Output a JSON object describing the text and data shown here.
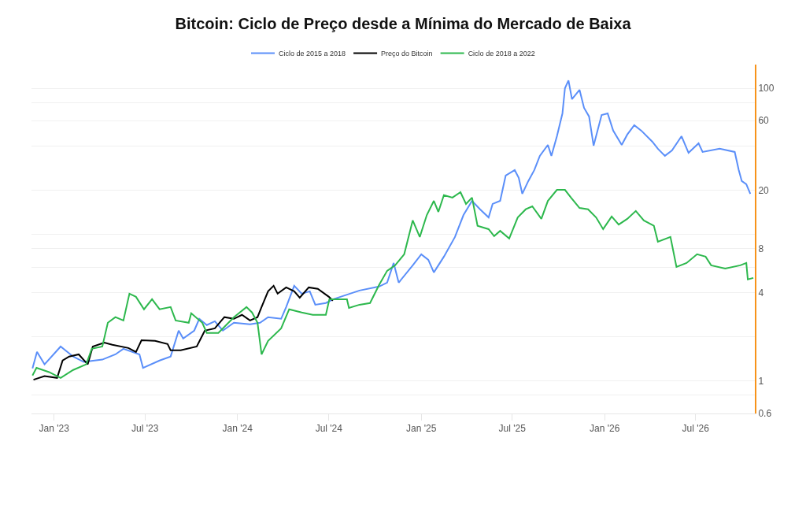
{
  "chart_data": {
    "type": "line",
    "title": "Bitcoin: Ciclo de Preço desde a Mínima do Mercado de Baixa",
    "log": true,
    "grid": "y",
    "legend": "top",
    "line_style": "solid",
    "xlim": [
      "2022-11-17",
      "2026-10-27"
    ],
    "xticks": [
      {
        "value": "2023-01-01",
        "label": "Jan '23"
      },
      {
        "value": "2023-07-01",
        "label": "Jul '23"
      },
      {
        "value": "2024-01-01",
        "label": "Jan '24"
      },
      {
        "value": "2024-07-01",
        "label": "Jul '24"
      },
      {
        "value": "2025-01-01",
        "label": "Jan '25"
      },
      {
        "value": "2025-07-01",
        "label": "Jul '25"
      },
      {
        "value": "2026-01-01",
        "label": "Jan '26"
      },
      {
        "value": "2026-07-01",
        "label": "Jul '26"
      }
    ],
    "ylim": [
      0.6,
      145
    ],
    "yticks": [
      0.6,
      {
        "value": 0.8,
        "label": null
      },
      1,
      {
        "value": 2,
        "label": null
      },
      4,
      {
        "value": 6,
        "label": null
      },
      8,
      {
        "value": 10,
        "label": null
      },
      20,
      {
        "value": 40,
        "label": null
      },
      60,
      {
        "value": 80,
        "label": null
      },
      100
    ],
    "series": [
      {
        "name": "Ciclo de 2015 a 2018",
        "color": "#5b8ff9",
        "x": [
          "2022-11-19",
          "2022-11-28",
          "2022-12-13",
          "2023-01-14",
          "2023-02-08",
          "2023-03-01",
          "2023-04-07",
          "2023-05-03",
          "2023-05-19",
          "2023-06-20",
          "2023-06-27",
          "2023-07-30",
          "2023-08-21",
          "2023-09-06",
          "2023-09-15",
          "2023-10-07",
          "2023-10-17",
          "2023-11-01",
          "2023-11-17",
          "2023-12-03",
          "2023-12-25",
          "2024-01-26",
          "2024-02-15",
          "2024-03-02",
          "2024-03-28",
          "2024-04-07",
          "2024-04-23",
          "2024-05-08",
          "2024-05-24",
          "2024-06-04",
          "2024-06-25",
          "2024-07-10",
          "2024-08-31",
          "2024-10-09",
          "2024-10-25",
          "2024-11-07",
          "2024-11-17",
          "2024-12-15",
          "2025-01-01",
          "2025-01-15",
          "2025-01-26",
          "2025-02-15",
          "2025-03-09",
          "2025-03-26",
          "2025-04-12",
          "2025-04-28",
          "2025-05-15",
          "2025-05-23",
          "2025-06-07",
          "2025-06-18",
          "2025-07-06",
          "2025-07-14",
          "2025-07-21",
          "2025-08-02",
          "2025-08-14",
          "2025-08-25",
          "2025-09-10",
          "2025-09-17",
          "2025-09-28",
          "2025-10-09",
          "2025-10-14",
          "2025-10-21",
          "2025-10-28",
          "2025-11-12",
          "2025-11-21",
          "2025-12-01",
          "2025-12-10",
          "2025-12-26",
          "2026-01-07",
          "2026-01-18",
          "2026-02-04",
          "2026-02-15",
          "2026-03-01",
          "2026-03-15",
          "2026-04-06",
          "2026-04-17",
          "2026-05-01",
          "2026-05-15",
          "2026-06-03",
          "2026-06-17",
          "2026-07-07",
          "2026-07-15",
          "2026-08-18",
          "2026-09-17",
          "2026-09-25",
          "2026-10-01",
          "2026-10-10",
          "2026-10-18"
        ],
        "values": [
          1.22,
          1.58,
          1.3,
          1.72,
          1.47,
          1.35,
          1.4,
          1.52,
          1.66,
          1.52,
          1.23,
          1.38,
          1.47,
          2.21,
          1.95,
          2.21,
          2.66,
          2.41,
          2.56,
          2.21,
          2.5,
          2.44,
          2.5,
          2.73,
          2.66,
          3.2,
          4.47,
          3.95,
          4.1,
          3.32,
          3.41,
          3.62,
          4.15,
          4.42,
          4.7,
          6.4,
          4.7,
          6.17,
          7.34,
          6.73,
          5.52,
          7.07,
          9.63,
          13.6,
          17.0,
          14.9,
          13.1,
          16.2,
          17.0,
          25.3,
          27.6,
          24.4,
          19.0,
          23.2,
          27.6,
          34.5,
          41.0,
          34.5,
          47.0,
          67.3,
          100,
          113,
          84.1,
          97.5,
          73.4,
          64.1,
          40.5,
          65.6,
          67.3,
          51.3,
          41.0,
          48.2,
          55.9,
          51.3,
          43.1,
          38.6,
          34.5,
          37.6,
          47.0,
          36.2,
          42.0,
          36.7,
          38.6,
          36.7,
          27.6,
          23.2,
          22.1,
          19.0
        ]
      },
      {
        "name": "Preço do Bitcoin",
        "color": "#000000",
        "x": [
          "2022-11-21",
          "2022-12-13",
          "2023-01-07",
          "2023-01-18",
          "2023-01-31",
          "2023-02-19",
          "2023-03-09",
          "2023-03-19",
          "2023-04-11",
          "2023-04-27",
          "2023-05-29",
          "2023-06-13",
          "2023-06-24",
          "2023-07-21",
          "2023-08-15",
          "2023-08-21",
          "2023-09-10",
          "2023-10-12",
          "2023-10-28",
          "2023-11-17",
          "2023-12-06",
          "2023-12-25",
          "2024-01-10",
          "2024-01-26",
          "2024-02-10",
          "2024-02-18",
          "2024-03-02",
          "2024-03-13",
          "2024-03-21",
          "2024-04-07",
          "2024-04-23",
          "2024-05-04",
          "2024-05-22",
          "2024-06-09",
          "2024-07-01",
          "2024-07-09"
        ],
        "values": [
          1.02,
          1.08,
          1.05,
          1.38,
          1.47,
          1.52,
          1.3,
          1.72,
          1.83,
          1.77,
          1.68,
          1.58,
          1.9,
          1.88,
          1.79,
          1.62,
          1.62,
          1.72,
          2.21,
          2.29,
          2.73,
          2.66,
          2.83,
          2.59,
          2.73,
          3.2,
          4.1,
          4.47,
          3.95,
          4.36,
          4.1,
          3.71,
          4.36,
          4.26,
          3.76,
          3.54
        ]
      },
      {
        "name": "Ciclo de 2018 a 2022",
        "color": "#2db84d",
        "x": [
          "2022-11-19",
          "2022-11-27",
          "2022-12-22",
          "2023-01-14",
          "2023-02-08",
          "2023-03-06",
          "2023-03-17",
          "2023-04-07",
          "2023-04-18",
          "2023-05-03",
          "2023-05-19",
          "2023-05-31",
          "2023-06-13",
          "2023-06-29",
          "2023-07-15",
          "2023-07-30",
          "2023-08-21",
          "2023-08-31",
          "2023-09-26",
          "2023-10-01",
          "2023-10-23",
          "2023-11-01",
          "2023-11-24",
          "2023-12-25",
          "2024-01-19",
          "2024-01-30",
          "2024-02-10",
          "2024-02-18",
          "2024-03-02",
          "2024-03-28",
          "2024-04-13",
          "2024-05-08",
          "2024-05-30",
          "2024-06-25",
          "2024-07-02",
          "2024-08-06",
          "2024-08-10",
          "2024-08-31",
          "2024-09-21",
          "2024-10-09",
          "2024-10-25",
          "2024-11-10",
          "2024-11-28",
          "2024-12-15",
          "2024-12-29",
          "2025-01-12",
          "2025-01-26",
          "2025-02-04",
          "2025-02-15",
          "2025-03-04",
          "2025-03-20",
          "2025-03-31",
          "2025-04-12",
          "2025-04-23",
          "2025-05-15",
          "2025-05-26",
          "2025-06-07",
          "2025-06-25",
          "2025-07-12",
          "2025-07-28",
          "2025-08-10",
          "2025-08-28",
          "2025-09-10",
          "2025-09-28",
          "2025-10-14",
          "2025-10-26",
          "2025-11-12",
          "2025-11-29",
          "2025-12-15",
          "2025-12-29",
          "2026-01-15",
          "2026-01-29",
          "2026-02-15",
          "2026-03-04",
          "2026-03-20",
          "2026-04-09",
          "2026-04-17",
          "2026-05-12",
          "2026-05-24",
          "2026-06-13",
          "2026-07-04",
          "2026-07-21",
          "2026-08-01",
          "2026-08-29",
          "2026-09-28",
          "2026-10-10",
          "2026-10-13",
          "2026-10-24"
        ],
        "values": [
          1.09,
          1.23,
          1.15,
          1.05,
          1.19,
          1.3,
          1.66,
          1.72,
          2.5,
          2.73,
          2.59,
          3.95,
          3.76,
          3.09,
          3.62,
          3.09,
          3.2,
          2.59,
          2.5,
          2.9,
          2.5,
          2.13,
          2.13,
          2.73,
          3.2,
          2.94,
          2.5,
          1.52,
          1.88,
          2.29,
          3.09,
          2.94,
          2.83,
          2.83,
          3.62,
          3.62,
          3.16,
          3.32,
          3.41,
          4.53,
          5.66,
          6.17,
          7.34,
          12.5,
          9.63,
          13.6,
          17.0,
          14.3,
          18.6,
          17.9,
          19.5,
          16.2,
          17.9,
          11.5,
          10.9,
          9.76,
          10.6,
          9.4,
          13.1,
          14.9,
          15.6,
          12.8,
          17.0,
          20.2,
          20.2,
          17.9,
          15.2,
          14.9,
          13.1,
          10.9,
          13.3,
          11.7,
          12.8,
          14.5,
          12.5,
          11.5,
          8.95,
          9.63,
          6.02,
          6.4,
          7.34,
          7.07,
          6.17,
          5.87,
          6.17,
          6.4,
          4.94,
          5.06
        ]
      }
    ]
  }
}
